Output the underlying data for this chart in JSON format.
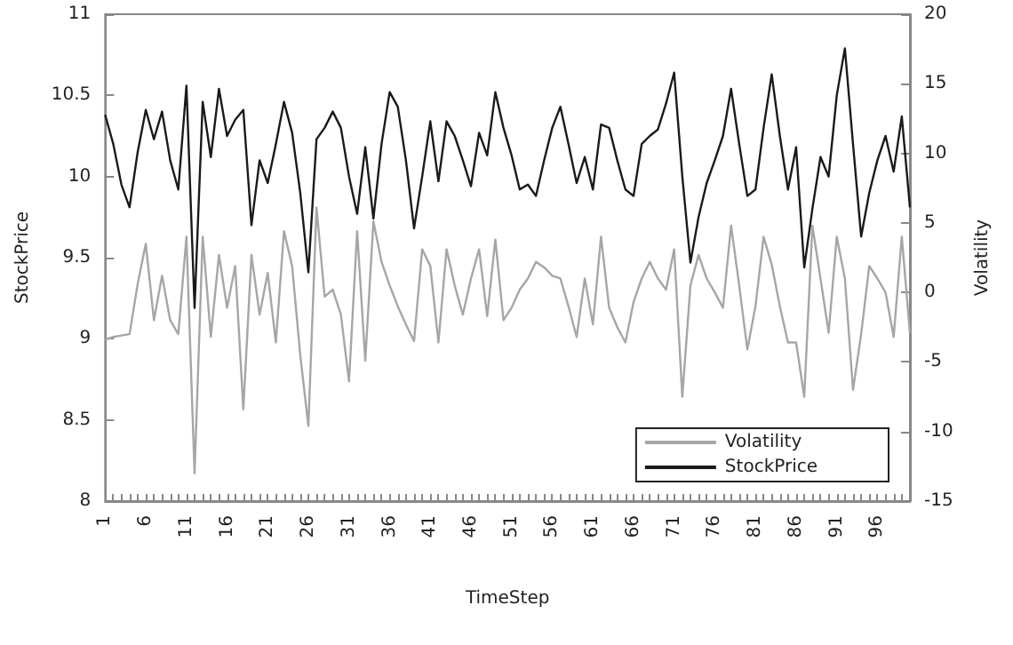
{
  "chart_data": {
    "type": "line",
    "xlabel": "TimeStep",
    "ylabel": "StockPrice",
    "y2label": "Volatility",
    "categories": [
      "1",
      null,
      null,
      null,
      null,
      "6",
      null,
      null,
      null,
      null,
      "11",
      null,
      null,
      null,
      null,
      "16",
      null,
      null,
      null,
      null,
      "21",
      null,
      null,
      null,
      null,
      "26",
      null,
      null,
      null,
      null,
      "31",
      null,
      null,
      null,
      null,
      "36",
      null,
      null,
      null,
      null,
      "41",
      null,
      null,
      null,
      null,
      "46",
      null,
      null,
      null,
      null,
      "51",
      null,
      null,
      null,
      null,
      "56",
      null,
      null,
      null,
      null,
      "61",
      null,
      null,
      null,
      null,
      "66",
      null,
      null,
      null,
      null,
      "71",
      null,
      null,
      null,
      null,
      "76",
      null,
      null,
      null,
      null,
      "81",
      null,
      null,
      null,
      null,
      "86",
      null,
      null,
      null,
      null,
      "91",
      null,
      null,
      null,
      null,
      "96",
      null,
      null,
      null,
      null
    ],
    "series": [
      {
        "name": "Volatility",
        "color": "#a6a6a6",
        "axis": "y2",
        "values": [
          -3.4,
          -3.2,
          -3.1,
          -3.0,
          0.6,
          3.5,
          -2.0,
          1.2,
          -2,
          -3,
          4,
          -13,
          4,
          -3.2,
          2.7,
          -1.1,
          1.9,
          -8.4,
          2.7,
          -1.6,
          1.4,
          -3.6,
          4.4,
          1.9,
          -4.5,
          -9.6,
          6.1,
          -0.3,
          0.2,
          -1.6,
          -6.4,
          4.4,
          -4.9,
          5.1,
          2.2,
          0.5,
          -1,
          -2.3,
          -3.5,
          3.1,
          1.9,
          -3.6,
          3.1,
          0.5,
          -1.6,
          1,
          3.1,
          -1.7,
          3.8,
          -2,
          -1.1,
          0.2,
          1,
          2.2,
          1.8,
          1.2,
          1,
          -1,
          -3.2,
          1,
          -2.3,
          4,
          -1.1,
          -2.5,
          -3.6,
          -0.7,
          1,
          2.2,
          1,
          0.2,
          3.1,
          -7.5,
          0.5,
          2.7,
          1,
          0,
          -1.1,
          4.8,
          0.5,
          -4.1,
          -1,
          4,
          2,
          -1,
          -3.6,
          -3.6,
          -7.5,
          4.8,
          1,
          -2.9,
          4,
          1,
          -7,
          -3,
          1.9,
          1,
          0,
          -3.2,
          4,
          -2.9
        ]
      },
      {
        "name": "StockPrice",
        "color": "#1a1a1a",
        "values": [
          10.38,
          10.2,
          9.95,
          9.81,
          10.15,
          10.41,
          10.23,
          10.4,
          10.1,
          9.92,
          10.56,
          9.19,
          10.46,
          10.12,
          10.54,
          10.25,
          10.35,
          10.41,
          9.7,
          10.1,
          9.96,
          10.2,
          10.46,
          10.27,
          9.9,
          9.41,
          10.23,
          10.3,
          10.4,
          10.3,
          10.0,
          9.77,
          10.18,
          9.74,
          10.2,
          10.52,
          10.43,
          10.1,
          9.68,
          10.0,
          10.34,
          9.97,
          10.34,
          10.25,
          10.1,
          9.94,
          10.27,
          10.13,
          10.52,
          10.3,
          10.13,
          9.92,
          9.95,
          9.88,
          10.1,
          10.3,
          10.43,
          10.2,
          9.96,
          10.12,
          9.92,
          10.32,
          10.3,
          10.1,
          9.92,
          9.88,
          10.2,
          10.25,
          10.29,
          10.45,
          10.64,
          10.0,
          9.47,
          9.75,
          9.96,
          10.1,
          10.25,
          10.54,
          10.2,
          9.88,
          9.92,
          10.3,
          10.63,
          10.25,
          9.92,
          10.18,
          9.44,
          9.8,
          10.12,
          10.0,
          10.5,
          10.79,
          10.2,
          9.63,
          9.9,
          10.1,
          10.25,
          10.03,
          10.37,
          9.81
        ]
      }
    ],
    "ylim": [
      8,
      11
    ],
    "yticks": [
      8,
      8.5,
      9,
      9.5,
      10,
      10.5,
      11
    ],
    "y2lim": [
      -15,
      20
    ],
    "y2ticks": [
      -15,
      -10,
      -5,
      0,
      5,
      10,
      15,
      20
    ],
    "legend": "bottom right",
    "marker": "none",
    "line_style": "solid"
  }
}
